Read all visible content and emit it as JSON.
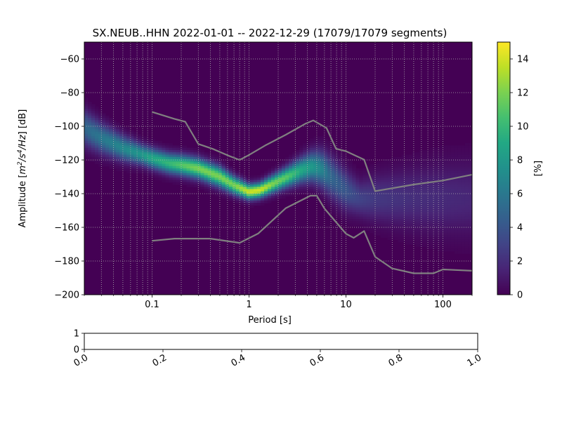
{
  "chart_data": [
    {
      "type": "heatmap",
      "title": "SX.NEUB..HHN   2022-01-01 -- 2022-12-29  (17079/17079 segments)",
      "xlabel": "Period [s]",
      "ylabel": "Amplitude [$m^2/s^4/Hz$] [dB]",
      "ylabel_parts": {
        "base": "Amplitude [",
        "m": "m",
        "e1": "2",
        "mid": "/s",
        "e2": "4",
        "tail": "/Hz",
        "unit": "] [dB]"
      },
      "xscale": "log",
      "xlim": [
        0.02,
        200
      ],
      "ylim": [
        -200,
        -50
      ],
      "xticks": [
        {
          "value": 0.1,
          "label": "0.1"
        },
        {
          "value": 1,
          "label": "1"
        },
        {
          "value": 10,
          "label": "10"
        },
        {
          "value": 100,
          "label": "100"
        }
      ],
      "yticks": [
        {
          "value": -60,
          "label": "−60"
        },
        {
          "value": -80,
          "label": "−80"
        },
        {
          "value": -100,
          "label": "−100"
        },
        {
          "value": -120,
          "label": "−120"
        },
        {
          "value": -140,
          "label": "−140"
        },
        {
          "value": -160,
          "label": "−160"
        },
        {
          "value": -180,
          "label": "−180"
        },
        {
          "value": -200,
          "label": "−200"
        }
      ],
      "grid": true,
      "colormap": "viridis",
      "colorbar": {
        "label": "[%]",
        "range": [
          0,
          15
        ],
        "ticks": [
          {
            "value": 0,
            "label": "0"
          },
          {
            "value": 2,
            "label": "2"
          },
          {
            "value": 4,
            "label": "4"
          },
          {
            "value": 6,
            "label": "6"
          },
          {
            "value": 8,
            "label": "8"
          },
          {
            "value": 10,
            "label": "10"
          },
          {
            "value": 12,
            "label": "12"
          },
          {
            "value": 14,
            "label": "14"
          }
        ]
      },
      "density_ridge": {
        "period": [
          0.02,
          0.03,
          0.05,
          0.08,
          0.1,
          0.15,
          0.2,
          0.3,
          0.5,
          0.7,
          1.0,
          1.3,
          1.8,
          2.5,
          3.5,
          4.5,
          5.5,
          7,
          10,
          14,
          20,
          50,
          100,
          200
        ],
        "center_db": [
          -101,
          -107,
          -113,
          -117,
          -119,
          -122,
          -123,
          -125,
          -130,
          -135,
          -139,
          -138,
          -134,
          -130,
          -126,
          -124,
          -125,
          -130,
          -138,
          -143,
          -143,
          -143,
          -143,
          -143
        ],
        "width_db": [
          7,
          6,
          5,
          4,
          4,
          4,
          4,
          4,
          4,
          3.5,
          3,
          3,
          3.5,
          4,
          5,
          6,
          7,
          8,
          8,
          7,
          9,
          12,
          14,
          15
        ],
        "peak_percent": [
          5,
          6,
          7,
          8,
          9,
          10,
          11,
          12,
          12,
          12,
          14,
          14,
          12,
          11,
          9,
          8,
          7,
          5,
          4,
          3,
          2.5,
          2,
          1.8,
          1.6
        ]
      },
      "series": [
        {
          "name": "",
          "x": [
            0.1,
            0.17,
            0.22,
            0.3,
            0.43,
            0.6,
            0.8,
            1.0,
            1.5,
            2.4,
            3.8,
            4.6,
            6.3,
            7.9,
            10,
            15.4,
            20,
            50,
            100,
            200
          ],
          "y": [
            -91.5,
            -95.6,
            -97.3,
            -110.5,
            -113.6,
            -117.2,
            -120,
            -117,
            -111.1,
            -105,
            -98.5,
            -96.5,
            -101,
            -113.3,
            -114.8,
            -119.8,
            -138.5,
            -134.6,
            -132.2,
            -128.7
          ]
        },
        {
          "name": "",
          "x": [
            0.1,
            0.17,
            0.4,
            0.8,
            1.24,
            2.4,
            4.3,
            5.0,
            6.0,
            10,
            12,
            15.4,
            20,
            30,
            50,
            80,
            100,
            200
          ],
          "y": [
            -168,
            -166.7,
            -166.7,
            -169.2,
            -163.7,
            -148.6,
            -141.2,
            -141.2,
            -148.8,
            -163.8,
            -166.2,
            -162.2,
            -177.5,
            -184.4,
            -187.3,
            -187.3,
            -185,
            -185.8
          ]
        }
      ]
    },
    {
      "type": "line",
      "xlim": [
        0,
        1
      ],
      "ylim": [
        0,
        1
      ],
      "xticks": [
        {
          "value": 0.0,
          "label": "0.0"
        },
        {
          "value": 0.2,
          "label": "0.2"
        },
        {
          "value": 0.4,
          "label": "0.4"
        },
        {
          "value": 0.6,
          "label": "0.6"
        },
        {
          "value": 0.8,
          "label": "0.8"
        },
        {
          "value": 1.0,
          "label": "1.0"
        }
      ],
      "yticks": [
        {
          "value": 0,
          "label": "0"
        },
        {
          "value": 1,
          "label": "1"
        }
      ]
    }
  ],
  "colors": {
    "background_cmap_zero": "#440154",
    "reference_line": "#808080",
    "grid": "#b0b0b0"
  }
}
